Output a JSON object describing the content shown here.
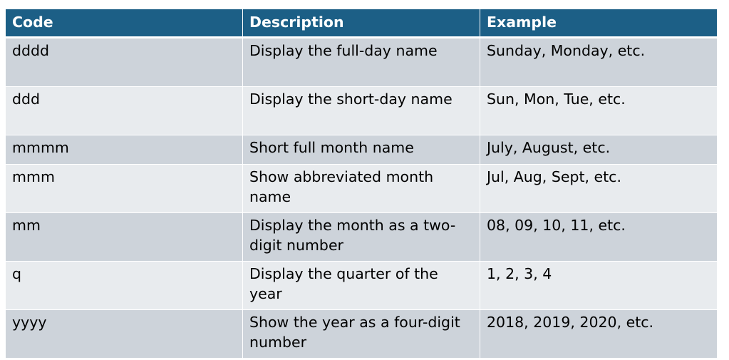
{
  "table": {
    "headers": [
      "Code",
      "Description",
      "Example"
    ],
    "rows": [
      {
        "code": "dddd",
        "description": "Display the full-day name",
        "example": "Sunday, Monday, etc."
      },
      {
        "code": "ddd",
        "description": "Display the short-day name",
        "example": "Sun, Mon, Tue, etc."
      },
      {
        "code": "mmmm",
        "description": "Short full month name",
        "example": "July, August, etc."
      },
      {
        "code": "mmm",
        "description": "Show abbreviated month name",
        "example": "Jul, Aug, Sept, etc."
      },
      {
        "code": "mm",
        "description": "Display the month as a two-digit number",
        "example": "08, 09, 10, 11, etc."
      },
      {
        "code": "q",
        "description": "Display the quarter of the year",
        "example": "1, 2, 3, 4"
      },
      {
        "code": "yyyy",
        "description": "Show the year as a four-digit number",
        "example": "2018, 2019, 2020, etc."
      }
    ]
  },
  "colors": {
    "header_bg": "#1c5f86",
    "row_odd_bg": "#cdd3da",
    "row_even_bg": "#e8ebee"
  }
}
